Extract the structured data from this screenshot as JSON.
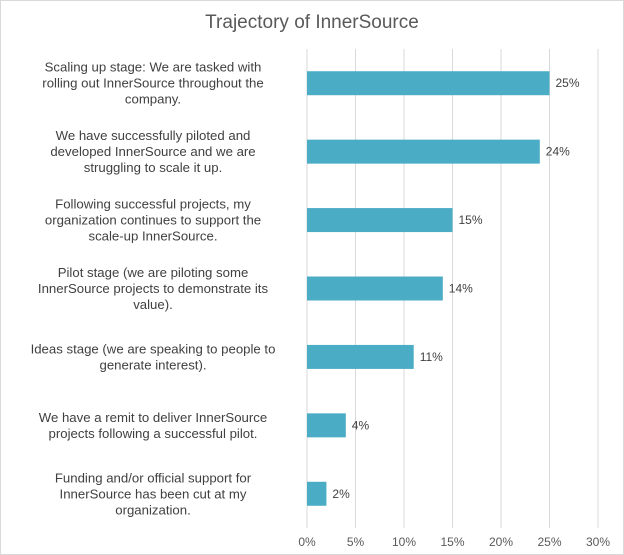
{
  "chart_data": {
    "type": "bar",
    "orientation": "horizontal",
    "title": "Trajectory of InnerSource",
    "categories": [
      "Scaling up stage: We are tasked with rolling out InnerSource throughout the company.",
      "We have successfully piloted and developed InnerSource and we are struggling to scale it up.",
      "Following successful projects, my organization continues to support the scale-up InnerSource.",
      "Pilot stage (we are piloting some InnerSource projects to demonstrate its value).",
      "Ideas stage (we are speaking to people to generate interest).",
      "We have a remit to deliver InnerSource projects following a successful pilot.",
      "Funding and/or official support for InnerSource has been cut at my organization."
    ],
    "category_lines": [
      [
        "Scaling up stage: We are tasked with",
        "rolling out InnerSource throughout the",
        "company."
      ],
      [
        "We have successfully piloted and",
        "developed InnerSource and we are",
        "struggling to scale it up."
      ],
      [
        "Following successful projects, my",
        "organization continues to support the",
        "scale-up InnerSource."
      ],
      [
        "Pilot stage (we are piloting some",
        "InnerSource projects to demonstrate its",
        "value)."
      ],
      [
        "Ideas stage (we are speaking to people to",
        "generate interest)."
      ],
      [
        "We have a remit to deliver InnerSource",
        "projects following a successful pilot."
      ],
      [
        "Funding and/or official support for",
        "InnerSource has been cut at my",
        "organization."
      ]
    ],
    "values": [
      25,
      24,
      15,
      14,
      11,
      4,
      2
    ],
    "data_labels": [
      "25%",
      "24%",
      "15%",
      "14%",
      "11%",
      "4%",
      "2%"
    ],
    "xlim": [
      0,
      30
    ],
    "x_ticks": [
      0,
      5,
      10,
      15,
      20,
      25,
      30
    ],
    "x_tick_labels": [
      "0%",
      "5%",
      "10%",
      "15%",
      "20%",
      "25%",
      "30%"
    ],
    "xlabel": "",
    "ylabel": "",
    "grid": true,
    "legend": "none",
    "bar_color": "#4bacc6",
    "grid_color": "#d9d9d9"
  }
}
